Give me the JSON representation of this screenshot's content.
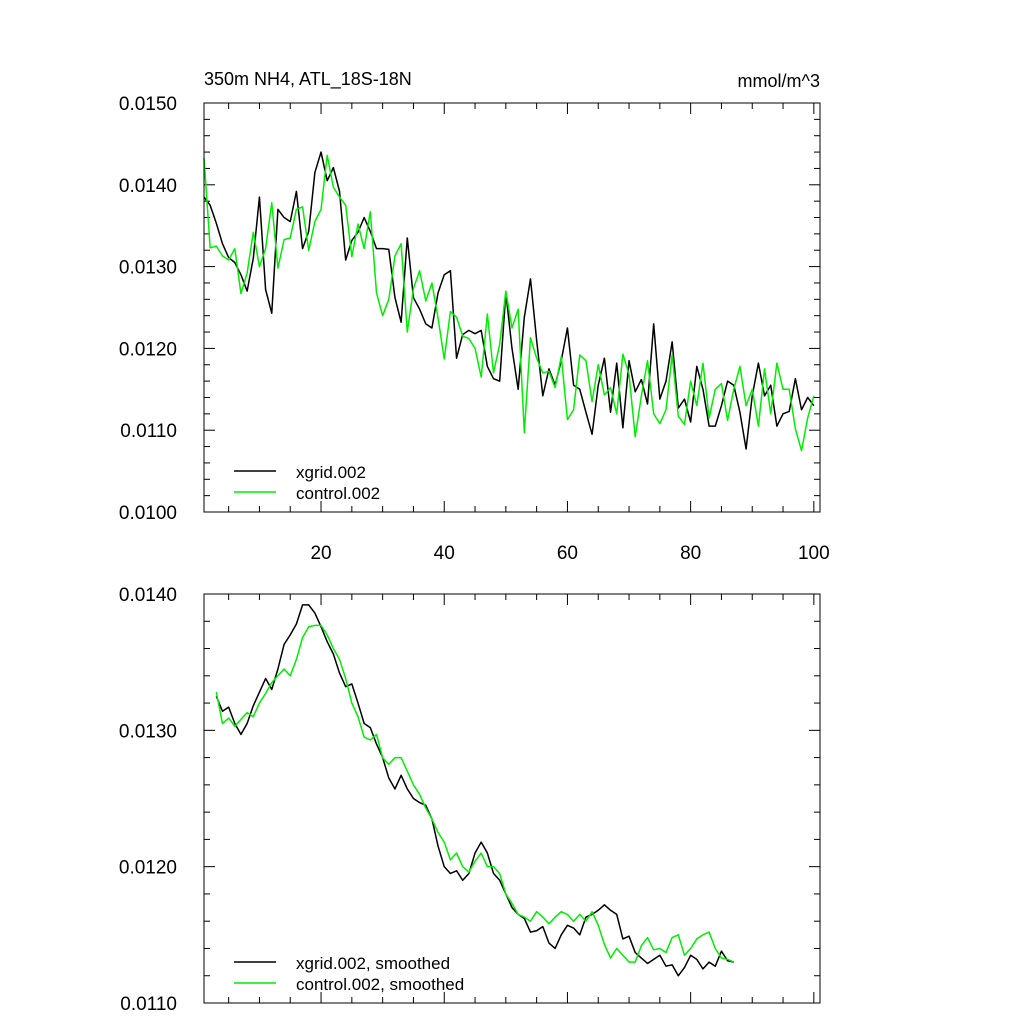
{
  "chart_data": [
    {
      "type": "line",
      "title": "350m NH4, ATL_18S-18N",
      "units": "mmol/m^3",
      "xlim": [
        1,
        101
      ],
      "ylim": [
        0.01,
        0.015
      ],
      "x_tick_labels": [
        "20",
        "40",
        "60",
        "80",
        "100"
      ],
      "y_tick_labels": [
        "0.0100",
        "0.0110",
        "0.0120",
        "0.0130",
        "0.0140",
        "0.0150"
      ],
      "legend_position": "bottom-left",
      "grid": false,
      "x_start": 1,
      "series": [
        {
          "name": "xgrid.002",
          "color": "#000000",
          "values": [
            0.01385,
            0.01375,
            0.01353,
            0.01328,
            0.01311,
            0.01305,
            0.0129,
            0.0127,
            0.0131,
            0.01385,
            0.01272,
            0.01243,
            0.0137,
            0.0136,
            0.01355,
            0.01392,
            0.01322,
            0.01343,
            0.01415,
            0.0144,
            0.01405,
            0.01421,
            0.01392,
            0.01308,
            0.01332,
            0.01342,
            0.0136,
            0.01343,
            0.01322,
            0.01322,
            0.01321,
            0.01262,
            0.01232,
            0.01335,
            0.01262,
            0.01248,
            0.0123,
            0.01225,
            0.01268,
            0.0129,
            0.01295,
            0.01188,
            0.01217,
            0.01222,
            0.01218,
            0.01222,
            0.01178,
            0.01163,
            0.0116,
            0.01268,
            0.012,
            0.0115,
            0.01238,
            0.01285,
            0.0121,
            0.01142,
            0.01175,
            0.01155,
            0.01185,
            0.01225,
            0.01155,
            0.0115,
            0.01122,
            0.01095,
            0.01155,
            0.01188,
            0.01122,
            0.01182,
            0.01103,
            0.01185,
            0.01147,
            0.01162,
            0.01132,
            0.0123,
            0.01138,
            0.0116,
            0.01208,
            0.01127,
            0.01138,
            0.0111,
            0.01178,
            0.0115,
            0.01105,
            0.01105,
            0.0113,
            0.0116,
            0.01155,
            0.01122,
            0.01077,
            0.01142,
            0.01182,
            0.01142,
            0.01155,
            0.01105,
            0.0112,
            0.01123,
            0.01163,
            0.01125,
            0.0114,
            0.0113
          ]
        },
        {
          "name": "control.002",
          "color": "#00ee00",
          "values": [
            0.01433,
            0.01323,
            0.01325,
            0.01313,
            0.01308,
            0.01322,
            0.01267,
            0.01292,
            0.01342,
            0.013,
            0.01322,
            0.01378,
            0.01298,
            0.01333,
            0.01335,
            0.0137,
            0.01373,
            0.0132,
            0.01355,
            0.0137,
            0.01436,
            0.01397,
            0.01385,
            0.01375,
            0.01312,
            0.01352,
            0.01322,
            0.01367,
            0.01268,
            0.0124,
            0.0126,
            0.01313,
            0.01328,
            0.0122,
            0.01273,
            0.01295,
            0.01258,
            0.0128,
            0.01237,
            0.01187,
            0.01245,
            0.01238,
            0.01215,
            0.01212,
            0.012,
            0.01165,
            0.01242,
            0.0117,
            0.01205,
            0.0127,
            0.01225,
            0.01248,
            0.01097,
            0.01213,
            0.01188,
            0.0117,
            0.01172,
            0.01152,
            0.0119,
            0.01113,
            0.01125,
            0.01192,
            0.01185,
            0.01135,
            0.0118,
            0.01143,
            0.01152,
            0.0112,
            0.01193,
            0.01168,
            0.01092,
            0.01142,
            0.01185,
            0.0112,
            0.01108,
            0.01125,
            0.01192,
            0.01117,
            0.01107,
            0.0116,
            0.0113,
            0.01182,
            0.01115,
            0.0115,
            0.01157,
            0.01112,
            0.0115,
            0.01178,
            0.0113,
            0.0115,
            0.01105,
            0.01175,
            0.0112,
            0.01182,
            0.0115,
            0.0115,
            0.01102,
            0.01075,
            0.01115,
            0.01142
          ]
        }
      ]
    },
    {
      "type": "line",
      "title": "",
      "units": "",
      "xlim": [
        1,
        101
      ],
      "ylim": [
        0.011,
        0.014
      ],
      "x_tick_labels": [],
      "y_tick_labels": [
        "0.0110",
        "0.0120",
        "0.0130",
        "0.0140"
      ],
      "legend_position": "bottom-left",
      "grid": false,
      "x_start": 3,
      "series": [
        {
          "name": "xgrid.002, smoothed",
          "color": "#000000",
          "values": [
            0.01325,
            0.01314,
            0.01317,
            0.01305,
            0.01297,
            0.01305,
            0.01318,
            0.01328,
            0.01338,
            0.0133,
            0.01345,
            0.01363,
            0.0137,
            0.01378,
            0.01392,
            0.01392,
            0.01386,
            0.01376,
            0.01365,
            0.01356,
            0.01342,
            0.01332,
            0.01334,
            0.0132,
            0.01305,
            0.01302,
            0.0129,
            0.0128,
            0.01265,
            0.01257,
            0.01267,
            0.01257,
            0.0125,
            0.01247,
            0.01245,
            0.01235,
            0.01215,
            0.012,
            0.01195,
            0.01197,
            0.0119,
            0.01195,
            0.0121,
            0.01218,
            0.0121,
            0.01195,
            0.0119,
            0.0118,
            0.0117,
            0.01165,
            0.01162,
            0.01152,
            0.01153,
            0.01156,
            0.01144,
            0.0114,
            0.0115,
            0.01157,
            0.01155,
            0.0115,
            0.01163,
            0.01165,
            0.01168,
            0.01172,
            0.01168,
            0.01165,
            0.01147,
            0.01149,
            0.01137,
            0.01133,
            0.01129,
            0.01132,
            0.01135,
            0.01127,
            0.01128,
            0.0112,
            0.01126,
            0.01135,
            0.01132,
            0.01125,
            0.0113,
            0.01127,
            0.01138,
            0.01131,
            0.0113
          ]
        },
        {
          "name": "control.002, smoothed",
          "color": "#00ee00",
          "values": [
            0.01328,
            0.01305,
            0.01309,
            0.01303,
            0.01308,
            0.01313,
            0.0131,
            0.0132,
            0.01327,
            0.01335,
            0.0134,
            0.01345,
            0.0134,
            0.01352,
            0.01368,
            0.01376,
            0.01377,
            0.01377,
            0.0137,
            0.0136,
            0.01352,
            0.01338,
            0.0132,
            0.0131,
            0.01295,
            0.01293,
            0.01297,
            0.0128,
            0.01275,
            0.0128,
            0.0128,
            0.0127,
            0.0126,
            0.01253,
            0.01243,
            0.01235,
            0.01225,
            0.01218,
            0.01205,
            0.0121,
            0.012,
            0.01196,
            0.01204,
            0.0121,
            0.012,
            0.012,
            0.01195,
            0.0118,
            0.01173,
            0.01165,
            0.01163,
            0.0116,
            0.01167,
            0.01163,
            0.01158,
            0.01163,
            0.01167,
            0.01165,
            0.0116,
            0.01165,
            0.0116,
            0.01167,
            0.01157,
            0.01143,
            0.01133,
            0.0114,
            0.01135,
            0.0113,
            0.0113,
            0.01142,
            0.01148,
            0.01139,
            0.0114,
            0.01137,
            0.01148,
            0.0115,
            0.01135,
            0.0114,
            0.01147,
            0.0115,
            0.01152,
            0.0114,
            0.01133,
            0.01132,
            0.0113
          ]
        }
      ]
    }
  ]
}
